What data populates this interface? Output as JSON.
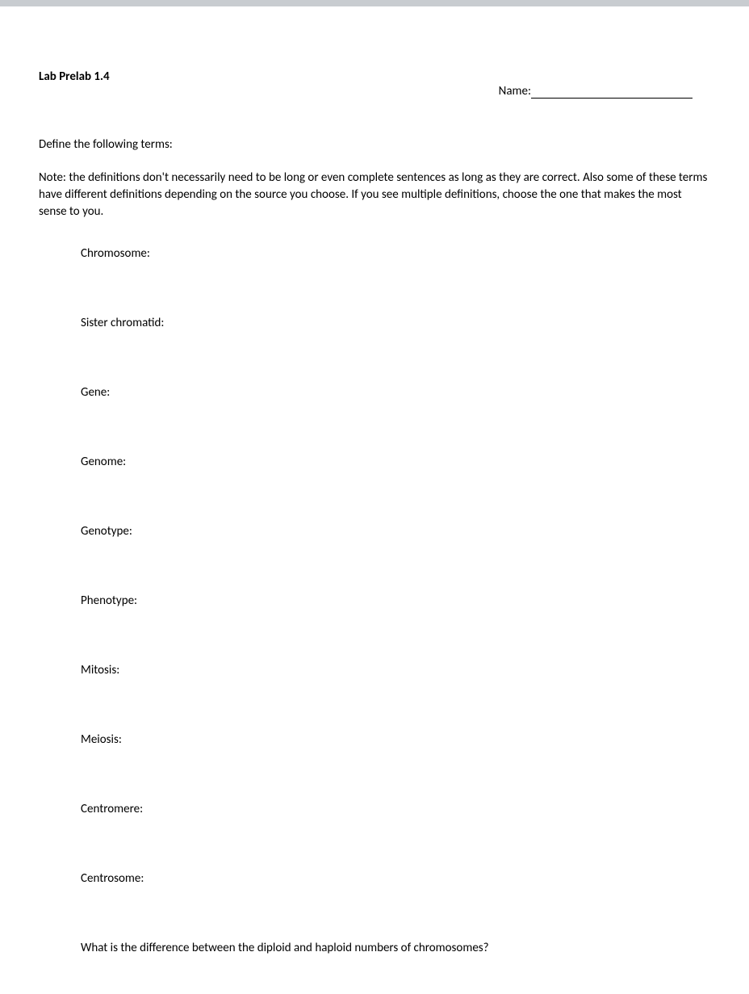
{
  "header": {
    "title": "Lab Prelab 1.4",
    "name_label": "Name:"
  },
  "instruction": "Define the following terms:",
  "note": "Note: the definitions don't necessarily need to be long or even complete sentences as long as they are correct.  Also some of these terms have different definitions depending on the source you choose.  If you see multiple definitions, choose the one that makes the most sense to you.",
  "terms": [
    "Chromosome:",
    "Sister chromatid:",
    "Gene:",
    "Genome:",
    "Genotype:",
    "Phenotype:",
    "Mitosis:",
    "Meiosis:",
    "Centromere:",
    "Centrosome:"
  ],
  "question": "What is the difference between the diploid and haploid numbers of chromosomes?",
  "colors": {
    "top_bar": "#c8ccd0",
    "background": "#ffffff",
    "text": "#000000"
  },
  "typography": {
    "font_family": "Calibri, Arial, sans-serif",
    "base_size": 15,
    "title_weight": "bold"
  }
}
